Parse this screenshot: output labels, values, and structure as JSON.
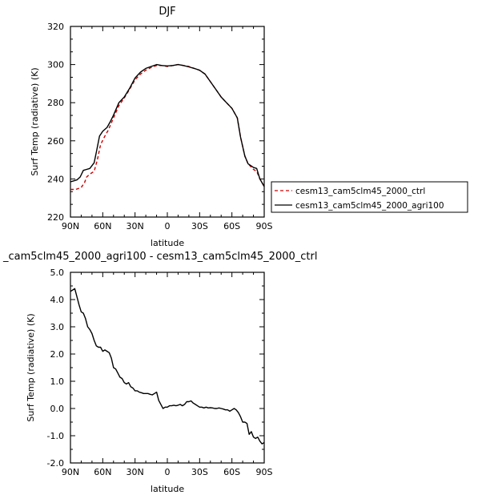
{
  "chart_data": [
    {
      "type": "line",
      "title": "DJF",
      "xlabel": "latitude",
      "ylabel": "Surf Temp (radiative) (K)",
      "xlim": [
        90,
        -90
      ],
      "ylim": [
        220,
        320
      ],
      "xticks": [
        90,
        60,
        30,
        0,
        -30,
        -60,
        -90
      ],
      "xtick_labels": [
        "90N",
        "60N",
        "30N",
        "0",
        "30S",
        "60S",
        "90S"
      ],
      "yticks": [
        220,
        240,
        260,
        280,
        300,
        320
      ],
      "ytick_labels": [
        "220",
        "240",
        "260",
        "280",
        "300",
        "320"
      ],
      "grid": false,
      "legend_position": "right",
      "series": [
        {
          "name": "cesm13_cam5clm45_2000_ctrl",
          "color": "#cc0000",
          "dash": "dashed",
          "x": [
            90,
            85,
            80,
            77,
            75,
            72,
            68,
            65,
            62,
            58,
            55,
            50,
            45,
            40,
            35,
            30,
            25,
            20,
            15,
            10,
            5,
            0,
            -5,
            -10,
            -15,
            -20,
            -25,
            -30,
            -35,
            -40,
            -45,
            -50,
            -55,
            -60,
            -65,
            -68,
            -72,
            -75,
            -80,
            -83,
            -86,
            -90
          ],
          "y": [
            234.5,
            234.5,
            235.5,
            238,
            241,
            242.5,
            244,
            250,
            258,
            262.5,
            265.5,
            272,
            278.5,
            282.5,
            287,
            292,
            295,
            297,
            298.5,
            299.5,
            299.5,
            299,
            299.5,
            300,
            299.5,
            299,
            298,
            297,
            295,
            291,
            287,
            283,
            280,
            277,
            272,
            262,
            252,
            248,
            245,
            244,
            240,
            236
          ]
        },
        {
          "name": "cesm13_cam5clm45_2000_agri100",
          "color": "#000000",
          "dash": "solid",
          "x": [
            90,
            87,
            84,
            81,
            78,
            75,
            72,
            68,
            66,
            63,
            60,
            56,
            53,
            50,
            45,
            40,
            35,
            30,
            25,
            20,
            15,
            10,
            5,
            0,
            -5,
            -10,
            -15,
            -20,
            -25,
            -30,
            -35,
            -40,
            -45,
            -50,
            -55,
            -60,
            -65,
            -68,
            -72,
            -75,
            -80,
            -83,
            -86,
            -90
          ],
          "y": [
            238.5,
            239,
            239.5,
            241,
            244.5,
            245,
            245.5,
            248.5,
            254,
            262.5,
            265,
            267,
            270,
            273.5,
            280,
            283,
            287.5,
            293,
            296,
            298,
            299,
            300,
            299.5,
            299.3,
            299.5,
            300,
            299.5,
            298.8,
            298,
            297,
            295,
            291,
            287,
            283,
            280,
            277,
            272,
            262,
            252,
            248,
            246,
            245.5,
            240,
            236
          ]
        }
      ]
    },
    {
      "type": "line",
      "title": "_cam5clm45_2000_agri100 - cesm13_cam5clm45_2000_ctrl",
      "xlabel": "latitude",
      "ylabel": "Surf Temp (radiative) (K)",
      "xlim": [
        90,
        -90
      ],
      "ylim": [
        -2.0,
        5.0
      ],
      "xticks": [
        90,
        60,
        30,
        0,
        -30,
        -60,
        -90
      ],
      "xtick_labels": [
        "90N",
        "60N",
        "30N",
        "0",
        "30S",
        "60S",
        "90S"
      ],
      "yticks": [
        -2.0,
        -1.0,
        0.0,
        1.0,
        2.0,
        3.0,
        4.0,
        5.0
      ],
      "ytick_labels": [
        "-2.0",
        "-1.0",
        "0.0",
        "1.0",
        "2.0",
        "3.0",
        "4.0",
        "5.0"
      ],
      "grid": false,
      "series": [
        {
          "color": "#000000",
          "dash": "solid",
          "x": [
            90,
            88,
            86,
            84,
            82,
            80,
            78,
            76,
            74,
            72,
            70,
            68,
            66,
            64,
            62,
            60,
            58,
            56,
            54,
            52,
            50,
            48,
            46,
            44,
            42,
            40,
            38,
            36,
            34,
            32,
            30,
            28,
            26,
            24,
            22,
            20,
            18,
            16,
            14,
            12,
            10,
            8,
            6,
            4,
            2,
            0,
            -2,
            -4,
            -6,
            -8,
            -10,
            -12,
            -14,
            -16,
            -18,
            -20,
            -22,
            -24,
            -26,
            -28,
            -30,
            -32,
            -34,
            -36,
            -38,
            -40,
            -42,
            -44,
            -46,
            -48,
            -50,
            -52,
            -54,
            -56,
            -58,
            -60,
            -62,
            -64,
            -66,
            -68,
            -70,
            -72,
            -74,
            -76,
            -78,
            -80,
            -82,
            -84,
            -86,
            -88,
            -90
          ],
          "y": [
            4.3,
            4.35,
            4.4,
            4.1,
            3.8,
            3.55,
            3.5,
            3.3,
            3.0,
            2.9,
            2.75,
            2.5,
            2.3,
            2.25,
            2.25,
            2.1,
            2.15,
            2.1,
            2.05,
            1.85,
            1.5,
            1.45,
            1.3,
            1.15,
            1.1,
            0.95,
            0.9,
            0.95,
            0.8,
            0.75,
            0.65,
            0.65,
            0.6,
            0.58,
            0.55,
            0.55,
            0.55,
            0.52,
            0.5,
            0.55,
            0.6,
            0.3,
            0.15,
            0.0,
            0.05,
            0.05,
            0.1,
            0.1,
            0.12,
            0.1,
            0.12,
            0.15,
            0.1,
            0.15,
            0.25,
            0.25,
            0.28,
            0.2,
            0.15,
            0.1,
            0.05,
            0.05,
            0.02,
            0.05,
            0.02,
            0.03,
            0.02,
            0.0,
            0.0,
            0.02,
            0.0,
            -0.02,
            -0.05,
            -0.05,
            -0.1,
            -0.05,
            0.0,
            -0.05,
            -0.15,
            -0.3,
            -0.5,
            -0.5,
            -0.55,
            -0.95,
            -0.85,
            -1.05,
            -1.1,
            -1.05,
            -1.2,
            -1.3,
            -1.25
          ]
        }
      ]
    }
  ]
}
